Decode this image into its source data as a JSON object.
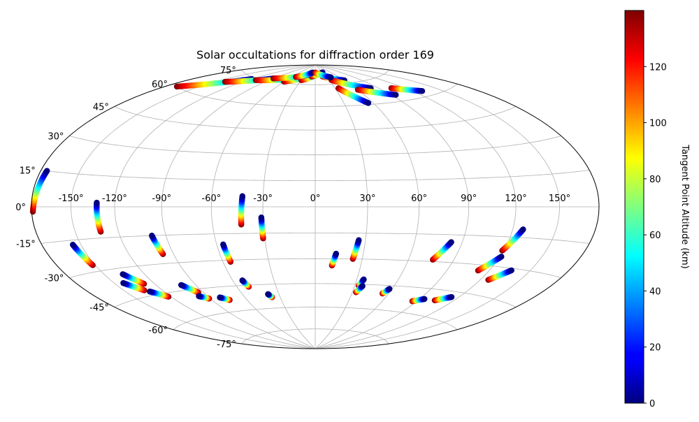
{
  "chart_data": {
    "type": "scatter",
    "projection": "hammer",
    "title": "Solar occultations for diffraction order 169",
    "colorbar": {
      "label": "Tangent Point Altitude (km)",
      "colormap": "jet",
      "range": [
        0,
        140
      ],
      "ticks": [
        "0",
        "20",
        "40",
        "60",
        "80",
        "100",
        "120"
      ],
      "tick_values": [
        0,
        20,
        40,
        60,
        80,
        100,
        120
      ]
    },
    "lon_ticks": [
      "-150°",
      "-120°",
      "-90°",
      "-60°",
      "-30°",
      "0°",
      "30°",
      "60°",
      "90°",
      "120°",
      "150°"
    ],
    "lon_tick_values": [
      -150,
      -120,
      -90,
      -60,
      -30,
      0,
      30,
      60,
      90,
      120,
      150
    ],
    "lat_ticks": [
      "75°",
      "60°",
      "45°",
      "30°",
      "15°",
      "0°",
      "-15°",
      "-30°",
      "-45°",
      "-60°",
      "-75°"
    ],
    "lat_tick_values": [
      75,
      60,
      45,
      30,
      15,
      0,
      -15,
      -30,
      -45,
      -60,
      -75
    ],
    "grid": true,
    "altitude_range": [
      0,
      140
    ],
    "occultations": [
      {
        "lon0": -179,
        "lat0": -2,
        "lon1": -175,
        "lat1": 15
      },
      {
        "lon0": -132,
        "lat0": -12,
        "lon1": -132,
        "lat1": 2
      },
      {
        "lon0": -43,
        "lat0": -10,
        "lon1": -42,
        "lat1": 6
      },
      {
        "lon0": -31,
        "lat0": -18,
        "lon1": -31,
        "lat1": -6
      },
      {
        "lon0": -152,
        "lat0": -27,
        "lon1": -156,
        "lat1": -17
      },
      {
        "lon0": -97,
        "lat0": -25,
        "lon1": -99,
        "lat1": -15
      },
      {
        "lon0": -55,
        "lat0": -31,
        "lon1": -56,
        "lat1": -21
      },
      {
        "lon0": 11,
        "lat0": -34,
        "lon1": 13,
        "lat1": -27
      },
      {
        "lon0": 24,
        "lat0": -30,
        "lon1": 26,
        "lat1": -19
      },
      {
        "lon0": 76,
        "lat0": -29,
        "lon1": 83,
        "lat1": -19
      },
      {
        "lon0": 119,
        "lat0": -22,
        "lon1": 127,
        "lat1": -11
      },
      {
        "lon0": 112,
        "lat0": -33,
        "lon1": 121,
        "lat1": -25
      },
      {
        "lon0": 126,
        "lat0": -37,
        "lon1": 136,
        "lat1": -31
      },
      {
        "lon0": -128,
        "lat0": -39,
        "lon1": -136,
        "lat1": -33
      },
      {
        "lon0": -134,
        "lat0": -42,
        "lon1": -143,
        "lat1": -37
      },
      {
        "lon0": -122,
        "lat0": -47,
        "lon1": -131,
        "lat1": -43
      },
      {
        "lon0": -94,
        "lat0": -47,
        "lon1": -101,
        "lat1": -42
      },
      {
        "lon0": -91,
        "lat0": -51,
        "lon1": -97,
        "lat1": -49
      },
      {
        "lon0": -75,
        "lat0": -53,
        "lon1": -81,
        "lat1": -51
      },
      {
        "lon0": -51,
        "lat0": -46,
        "lon1": -53,
        "lat1": -42
      },
      {
        "lon0": -37,
        "lat0": -53,
        "lon1": -39,
        "lat1": -51
      },
      {
        "lon0": 33,
        "lat0": -46,
        "lon1": 35,
        "lat1": -42
      },
      {
        "lon0": 33,
        "lat0": -50,
        "lon1": 36,
        "lat1": -46
      },
      {
        "lon0": 55,
        "lat0": -50,
        "lon1": 58,
        "lat1": -47
      },
      {
        "lon0": 104,
        "lat0": -51,
        "lon1": 114,
        "lat1": -48
      },
      {
        "lon0": 86,
        "lat0": -53,
        "lon1": 94,
        "lat1": -51
      },
      {
        "lon0": -170,
        "lat0": 60,
        "lon1": -120,
        "lat1": 74
      },
      {
        "lon0": -140,
        "lat0": 69,
        "lon1": -90,
        "lat1": 77
      },
      {
        "lon0": -110,
        "lat0": 74,
        "lon1": -45,
        "lat1": 79
      },
      {
        "lon0": -60,
        "lat0": 76,
        "lon1": -20,
        "lat1": 81
      },
      {
        "lon0": -30,
        "lat0": 78,
        "lon1": 10,
        "lat1": 83
      },
      {
        "lon0": -10,
        "lat0": 81,
        "lon1": 30,
        "lat1": 84
      },
      {
        "lon0": 20,
        "lat0": 81,
        "lon1": 60,
        "lat1": 77
      },
      {
        "lon0": 35,
        "lat0": 78,
        "lon1": 80,
        "lat1": 70
      },
      {
        "lon0": 60,
        "lat0": 70,
        "lon1": 95,
        "lat1": 64
      },
      {
        "lon0": 35,
        "lat0": 72,
        "lon1": 55,
        "lat1": 61
      },
      {
        "lon0": 105,
        "lat0": 68,
        "lon1": 130,
        "lat1": 63
      },
      {
        "lon0": -90,
        "lat0": 77,
        "lon1": -25,
        "lat1": 82
      },
      {
        "lon0": -50,
        "lat0": 80,
        "lon1": -10,
        "lat1": 84
      },
      {
        "lon0": 0,
        "lat0": 84,
        "lon1": 40,
        "lat1": 80
      }
    ]
  }
}
